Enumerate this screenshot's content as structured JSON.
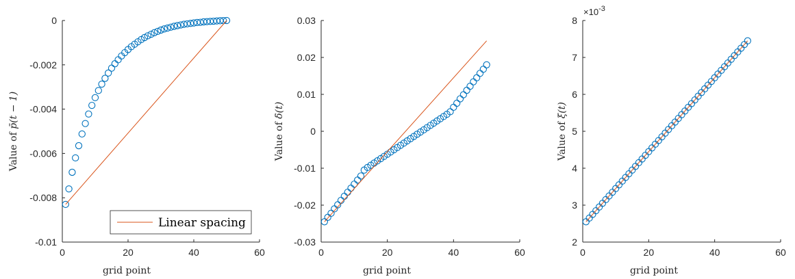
{
  "colors": {
    "marker": "#0072BD",
    "line": "#D95319",
    "axis": "#262626"
  },
  "chart_data": [
    {
      "type": "scatter",
      "xlabel": "grid point",
      "ylabel_prefix": "Value of ",
      "ylabel_var": "p̄(t − 1)",
      "xlim": [
        0,
        60
      ],
      "ylim": [
        -0.01,
        0
      ],
      "xticks": [
        "0",
        "20",
        "40",
        "60"
      ],
      "yticks": [
        "-0.01",
        "-0.008",
        "-0.006",
        "-0.004",
        "-0.002",
        "0"
      ],
      "legend": {
        "label": "Linear spacing",
        "position": "bottom-right"
      },
      "series": [
        {
          "kind": "markers",
          "x_start": 1,
          "x_end": 50,
          "y": [
            -0.0083,
            -0.0076,
            -0.00685,
            -0.0062,
            -0.00565,
            -0.00512,
            -0.00465,
            -0.00422,
            -0.00383,
            -0.00348,
            -0.00316,
            -0.00287,
            -0.00261,
            -0.00237,
            -0.00215,
            -0.00195,
            -0.00177,
            -0.0016,
            -0.00145,
            -0.00131,
            -0.00118,
            -0.00107,
            -0.00096,
            -0.00086,
            -0.00077,
            -0.00069,
            -0.00062,
            -0.00055,
            -0.00049,
            -0.00043,
            -0.00038,
            -0.00034,
            -0.0003,
            -0.00026,
            -0.00023,
            -0.0002,
            -0.00017,
            -0.00015,
            -0.00013,
            -0.00011,
            -9e-05,
            -8e-05,
            -6e-05,
            -5e-05,
            -4e-05,
            -3e-05,
            -2e-05,
            -1e-05,
            -5e-06,
            0
          ]
        },
        {
          "kind": "line",
          "name": "Linear spacing",
          "x": [
            1,
            50
          ],
          "y": [
            -0.0083,
            0
          ]
        }
      ]
    },
    {
      "type": "scatter",
      "xlabel": "grid point",
      "ylabel_prefix": "Value of ",
      "ylabel_var": "δ̄(t)",
      "xlim": [
        0,
        60
      ],
      "ylim": [
        -0.03,
        0.03
      ],
      "xticks": [
        "0",
        "20",
        "40",
        "60"
      ],
      "yticks": [
        "-0.03",
        "-0.02",
        "-0.01",
        "0",
        "0.01",
        "0.02",
        "0.03"
      ],
      "series": [
        {
          "kind": "markers",
          "x_start": 1,
          "x_end": 50,
          "y": [
            -0.0245,
            -0.0233,
            -0.0222,
            -0.021,
            -0.0199,
            -0.0187,
            -0.0176,
            -0.0165,
            -0.0154,
            -0.0143,
            -0.0132,
            -0.0121,
            -0.0105,
            -0.0098,
            -0.0092,
            -0.0086,
            -0.008,
            -0.0074,
            -0.0068,
            -0.0062,
            -0.0056,
            -0.005,
            -0.0044,
            -0.0038,
            -0.0032,
            -0.0026,
            -0.002,
            -0.0014,
            -0.0008,
            -0.0002,
            0.0004,
            0.001,
            0.0016,
            0.0022,
            0.0028,
            0.0034,
            0.004,
            0.0046,
            0.0053,
            0.0065,
            0.0076,
            0.0088,
            0.0099,
            0.0111,
            0.0122,
            0.0134,
            0.0145,
            0.0157,
            0.0168,
            0.018
          ]
        },
        {
          "kind": "line",
          "x": [
            1,
            50
          ],
          "y": [
            -0.0245,
            0.0245
          ]
        }
      ]
    },
    {
      "type": "scatter",
      "xlabel": "grid point",
      "ylabel_prefix": "Value of ",
      "ylabel_var": "ξ(t)",
      "exponent_label": "×10",
      "exponent_power": "-3",
      "xlim": [
        0,
        60
      ],
      "ylim": [
        2,
        8
      ],
      "xticks": [
        "0",
        "20",
        "40",
        "60"
      ],
      "yticks": [
        "2",
        "3",
        "4",
        "5",
        "6",
        "7",
        "8"
      ],
      "series": [
        {
          "kind": "markers",
          "x_start": 1,
          "x_end": 50,
          "y_start": 2.55,
          "y_end": 7.45
        },
        {
          "kind": "line",
          "x": [
            1,
            50
          ],
          "y": [
            2.55,
            7.45
          ]
        }
      ]
    }
  ]
}
